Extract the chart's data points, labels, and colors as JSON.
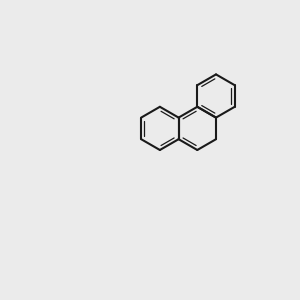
{
  "bg_color": "#ebebeb",
  "bond_color": "#1a1a1a",
  "o_color": "#ff0000",
  "cl_color": "#00bb00",
  "lw": 1.5,
  "lw_inner": 0.9,
  "ring_r": 0.55
}
